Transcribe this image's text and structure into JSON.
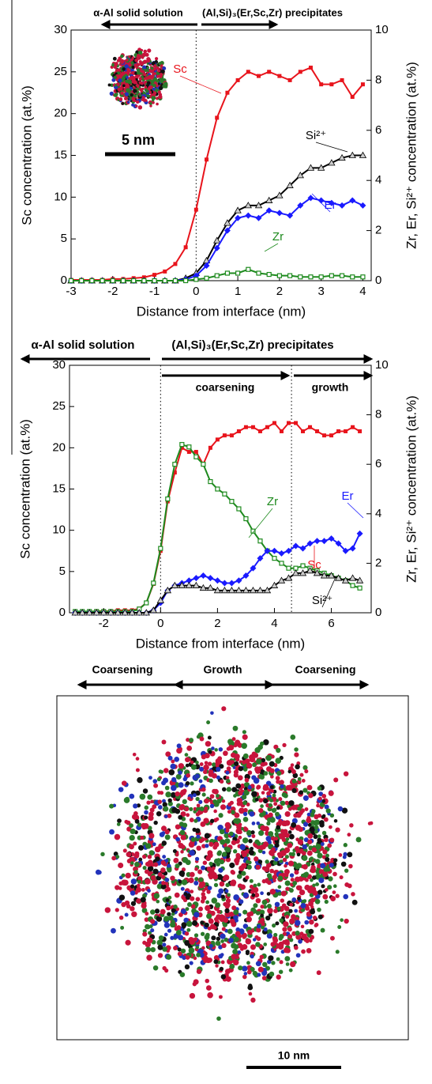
{
  "chart_data": [
    {
      "type": "line",
      "x_label": "Distance from interface (nm)",
      "y_label": "Sc concentration (at.%)",
      "y2_label": "Zr, Er, Si²⁺ concentration (at.%)",
      "xlim": [
        -3,
        4.2
      ],
      "xticks": [
        -3,
        -2,
        -1,
        0,
        1,
        2,
        3,
        4
      ],
      "ylim": [
        0,
        30
      ],
      "yticks": [
        0,
        5,
        10,
        15,
        20,
        25,
        30
      ],
      "y2lim": [
        0,
        10
      ],
      "y2ticks": [
        0,
        2,
        4,
        6,
        8,
        10
      ],
      "vlines": [
        0
      ],
      "annotations": [
        "α-Al solid solution",
        "(Al,Si)₃(Er,Sc,Zr) precipitates"
      ],
      "inset_scale_label": "5 nm",
      "x": [
        -3,
        -2.75,
        -2.5,
        -2.25,
        -2,
        -1.75,
        -1.5,
        -1.25,
        -1,
        -0.75,
        -0.5,
        -0.25,
        0,
        0.25,
        0.5,
        0.75,
        1,
        1.25,
        1.5,
        1.75,
        2,
        2.25,
        2.5,
        2.75,
        3,
        3.25,
        3.5,
        3.75,
        4
      ],
      "series": [
        {
          "name": "Sc",
          "color": "#e8141c",
          "marker": "square",
          "values": [
            0.1,
            0.1,
            0.1,
            0.1,
            0.2,
            0.2,
            0.3,
            0.4,
            0.7,
            1.1,
            2,
            4,
            8.5,
            14.5,
            19.5,
            22.5,
            24,
            25,
            24.5,
            25,
            24.5,
            24,
            25,
            25.5,
            23.5,
            23.5,
            24,
            22,
            23.5
          ]
        },
        {
          "name": "Si²⁺",
          "color": "#000000",
          "marker": "triangle",
          "axis": "y2",
          "values": [
            0,
            0,
            0,
            0,
            0,
            0,
            0,
            0,
            0,
            0,
            0,
            0.1,
            0.3,
            0.8,
            1.6,
            2.3,
            2.8,
            3,
            3,
            3.2,
            3.4,
            3.8,
            4.2,
            4.5,
            4.5,
            4.7,
            4.9,
            5,
            5
          ]
        },
        {
          "name": "Er",
          "color": "#1a1aff",
          "marker": "diamond",
          "axis": "y2",
          "values": [
            0,
            0,
            0,
            0,
            0,
            0,
            0,
            0,
            0,
            0,
            0,
            0.05,
            0.2,
            0.6,
            1.3,
            2,
            2.5,
            2.6,
            2.5,
            2.8,
            2.7,
            2.6,
            3,
            3.3,
            3.2,
            3.1,
            3,
            3.2,
            3
          ]
        },
        {
          "name": "Zr",
          "color": "#1e8a1e",
          "marker": "open-square",
          "axis": "y2",
          "values": [
            0,
            0,
            0,
            0,
            0,
            0,
            0,
            0,
            0,
            0,
            0,
            0,
            0.05,
            0.1,
            0.2,
            0.3,
            0.3,
            0.45,
            0.3,
            0.25,
            0.2,
            0.2,
            0.15,
            0.15,
            0.15,
            0.2,
            0.2,
            0.15,
            0.15
          ]
        }
      ]
    },
    {
      "type": "line",
      "x_label": "Distance from interface (nm)",
      "y_label": "Sc concentration (at.%)",
      "y2_label": "Zr, Er, Si²⁺ concentration (at.%)",
      "xlim": [
        -3.2,
        7.4
      ],
      "xticks": [
        -2,
        0,
        2,
        4,
        6
      ],
      "ylim": [
        0,
        30
      ],
      "yticks": [
        0,
        5,
        10,
        15,
        20,
        25,
        30
      ],
      "y2lim": [
        0,
        10
      ],
      "y2ticks": [
        0,
        2,
        4,
        6,
        8,
        10
      ],
      "vlines": [
        0,
        4.6
      ],
      "annotations": [
        "α-Al solid solution",
        "(Al,Si)₃(Er,Sc,Zr) precipitates",
        "coarsening",
        "growth"
      ],
      "x": [
        -3,
        -2.75,
        -2.5,
        -2.25,
        -2,
        -1.75,
        -1.5,
        -1.25,
        -1,
        -0.75,
        -0.5,
        -0.25,
        0,
        0.25,
        0.5,
        0.75,
        1,
        1.25,
        1.5,
        1.75,
        2,
        2.25,
        2.5,
        2.75,
        3,
        3.25,
        3.5,
        3.75,
        4,
        4.25,
        4.5,
        4.75,
        5,
        5.25,
        5.5,
        5.75,
        6,
        6.25,
        6.5,
        6.75,
        7
      ],
      "series": [
        {
          "name": "Sc",
          "color": "#e8141c",
          "marker": "square",
          "values": [
            0.1,
            0.1,
            0.1,
            0.2,
            0.2,
            0.2,
            0.3,
            0.3,
            0.3,
            0.5,
            1.2,
            3.5,
            7.5,
            13.5,
            17,
            20,
            19.5,
            19.5,
            18,
            20,
            21,
            21.5,
            21.5,
            22,
            22.5,
            22.5,
            22,
            22.5,
            23,
            22,
            23,
            23,
            22,
            22.5,
            22,
            21.5,
            21.5,
            22,
            22,
            22.5,
            22
          ]
        },
        {
          "name": "Zr",
          "color": "#1e8a1e",
          "marker": "open-square",
          "axis": "y2",
          "values": [
            0.05,
            0.05,
            0.05,
            0.05,
            0.05,
            0.05,
            0.05,
            0.05,
            0.05,
            0.15,
            0.4,
            1.2,
            2.6,
            4.6,
            6,
            6.8,
            6.7,
            6.3,
            6,
            5.3,
            5,
            4.8,
            4.5,
            4.2,
            3.8,
            3.3,
            2.9,
            2.5,
            2.2,
            2,
            1.8,
            1.8,
            1.9,
            1.8,
            1.7,
            1.6,
            1.5,
            1.4,
            1.3,
            1.1,
            1
          ]
        },
        {
          "name": "Er",
          "color": "#1a1aff",
          "marker": "diamond",
          "axis": "y2",
          "values": [
            0,
            0,
            0,
            0,
            0,
            0,
            0,
            0,
            0,
            0,
            0,
            0.1,
            0.4,
            0.9,
            1.1,
            1.2,
            1.3,
            1.4,
            1.5,
            1.4,
            1.3,
            1.2,
            1.2,
            1.3,
            1.5,
            1.8,
            2.2,
            2.5,
            2.5,
            2.4,
            2.5,
            2.7,
            2.6,
            2.8,
            2.9,
            2.9,
            3,
            2.8,
            2.5,
            2.6,
            3.2
          ]
        },
        {
          "name": "Si²⁺",
          "color": "#000000",
          "marker": "triangle",
          "axis": "y2",
          "values": [
            0,
            0,
            0,
            0,
            0,
            0,
            0,
            0,
            0,
            0,
            0,
            0.1,
            0.5,
            0.9,
            1.1,
            1.1,
            1.1,
            1.1,
            1,
            1,
            0.9,
            0.9,
            0.9,
            0.9,
            0.9,
            0.9,
            0.9,
            0.9,
            1.1,
            1.3,
            1.4,
            1.6,
            1.6,
            1.7,
            1.6,
            1.5,
            1.5,
            1.4,
            1.3,
            1.4,
            1.3
          ]
        }
      ]
    }
  ],
  "atom_map": {
    "labels": [
      "Coarsening",
      "Growth",
      "Coarsening"
    ],
    "scale_bar": "10 nm"
  }
}
